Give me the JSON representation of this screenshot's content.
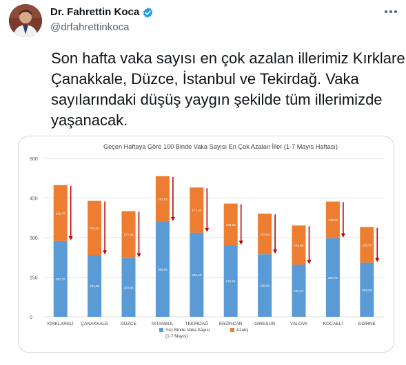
{
  "author": {
    "name": "Dr. Fahrettin Koca",
    "handle": "@drfahrettinkoca",
    "verified": true,
    "avatar": "avatar-photo",
    "more_icon": "more-dots-icon"
  },
  "tweet": {
    "lines": [
      "Son hafta vaka sayısı en çok azalan illerimiz Kırklareli,",
      "Çanakkale, Düzce, İstanbul ve Tekirdağ. Vaka",
      "sayılarındaki düşüş yaygın şekilde tüm illerimizde",
      "yaşanacak."
    ]
  },
  "colors": {
    "series_base": "#5b9bd5",
    "series_drop": "#ed7d31",
    "arrow": "#c00000",
    "verified": "#1d9bf0"
  },
  "chart_data": {
    "type": "bar",
    "stacked": true,
    "title": "Geçen Haftaya Göre 100 Binde Vaka Sayısı En Çok Azalan İller (1-7 Mayıs Haftası)",
    "ylim": [
      0,
      600
    ],
    "yticks": [
      "0",
      "150",
      "300",
      "450",
      "600"
    ],
    "grid": true,
    "legend": "bottom",
    "categories": [
      "KIRKLARELİ",
      "ÇANAKKALE",
      "DÜZCE",
      "İSTANBUL",
      "TEKİRDAĞ",
      "ERZİNCAN",
      "GİRESUN",
      "YALOVA",
      "KOCAELİ",
      "EDİRNE"
    ],
    "series": [
      {
        "name": "Yüz Binde Vaka Sayısı (1-7 Mayıs)",
        "values": [
          287.23,
          233.59,
          222.46,
          359.95,
          318.48,
          270.01,
          236.9,
          197.07,
          297.76,
          204.53
        ],
        "labels": [
          "287,23",
          "233,59",
          "222,46",
          "359,95",
          "318,48",
          "270,01",
          "236,90",
          "197,07",
          "297,76",
          "204,53"
        ]
      },
      {
        "name": "Azalış",
        "values": [
          211.47,
          205.52,
          177.45,
          172.63,
          171.41,
          158.89,
          153.54,
          148.88,
          138.89,
          135.35
        ],
        "labels": [
          "211,47",
          "205,52",
          "177,45",
          "172,63",
          "171,41",
          "158,89",
          "153,54",
          "148,88",
          "138,89",
          "135,35"
        ]
      }
    ]
  }
}
